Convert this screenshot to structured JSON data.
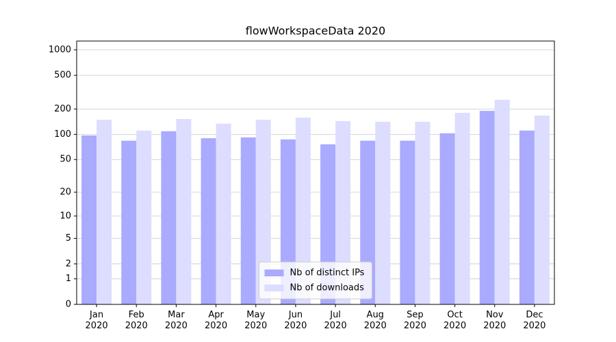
{
  "chart_data": {
    "type": "bar",
    "title": "flowWorkspaceData 2020",
    "categories": [
      "Jan\n2020",
      "Feb\n2020",
      "Mar\n2020",
      "Apr\n2020",
      "May\n2020",
      "Jun\n2020",
      "Jul\n2020",
      "Aug\n2020",
      "Sep\n2020",
      "Oct\n2020",
      "Nov\n2020",
      "Dec\n2020"
    ],
    "series": [
      {
        "name": "Nb of distinct IPs",
        "color": "#aaaaff",
        "values": [
          97,
          84,
          109,
          90,
          92,
          87,
          76,
          84,
          84,
          103,
          190,
          111
        ]
      },
      {
        "name": "Nb of downloads",
        "color": "#ddddff",
        "values": [
          149,
          111,
          152,
          134,
          149,
          158,
          144,
          141,
          141,
          180,
          257,
          167
        ]
      }
    ],
    "yscale": "log1p",
    "ylim": [
      0,
      1270
    ],
    "yticks": [
      0,
      1,
      2,
      5,
      10,
      20,
      50,
      100,
      200,
      500,
      1000
    ],
    "grid": true,
    "legend": "lower center"
  }
}
